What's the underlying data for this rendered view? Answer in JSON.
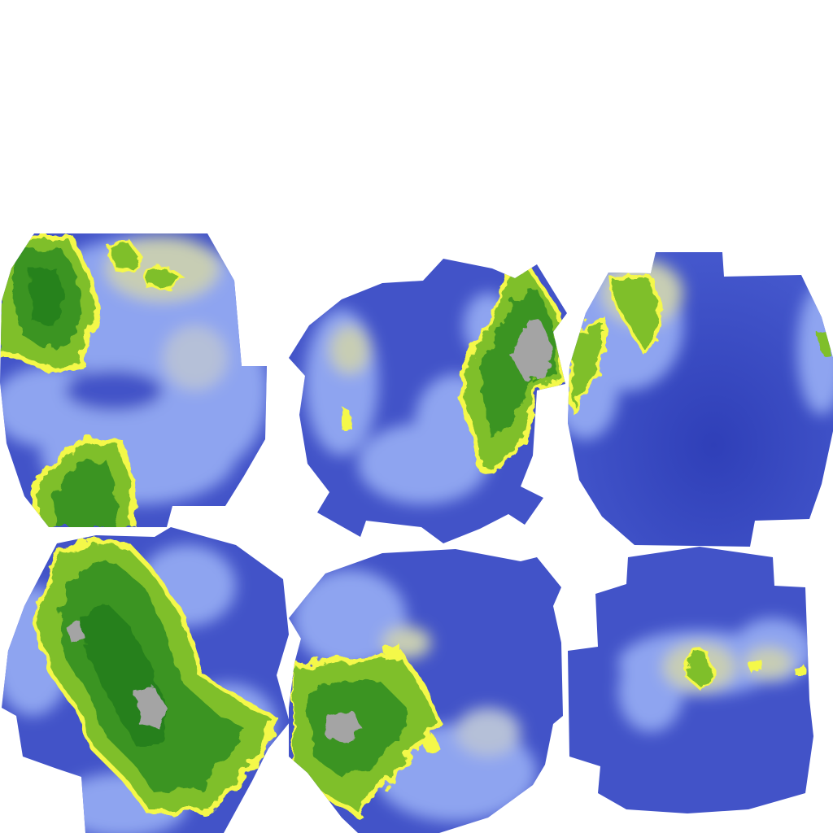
{
  "palette": {
    "deep_water": "#3747c0",
    "water": "#4f66d6",
    "shallow_water": "#8ea4f0",
    "coast_haze": "#c7cdb4",
    "beach": "#f4f84a",
    "lowland": "#7fbf2c",
    "forest": "#3a9420",
    "dark_forest": "#1f7a1f",
    "mountain": "#a4a4a4",
    "background": "#ffffff"
  },
  "tiles": [
    {
      "id": "tile-1",
      "kind": "cube-face-terrain-texture"
    },
    {
      "id": "tile-2",
      "kind": "cube-face-terrain-texture"
    },
    {
      "id": "tile-3",
      "kind": "cube-face-terrain-texture"
    },
    {
      "id": "tile-4",
      "kind": "cube-face-terrain-texture"
    },
    {
      "id": "tile-5",
      "kind": "cube-face-terrain-texture"
    },
    {
      "id": "tile-6",
      "kind": "cube-face-terrain-texture"
    }
  ]
}
